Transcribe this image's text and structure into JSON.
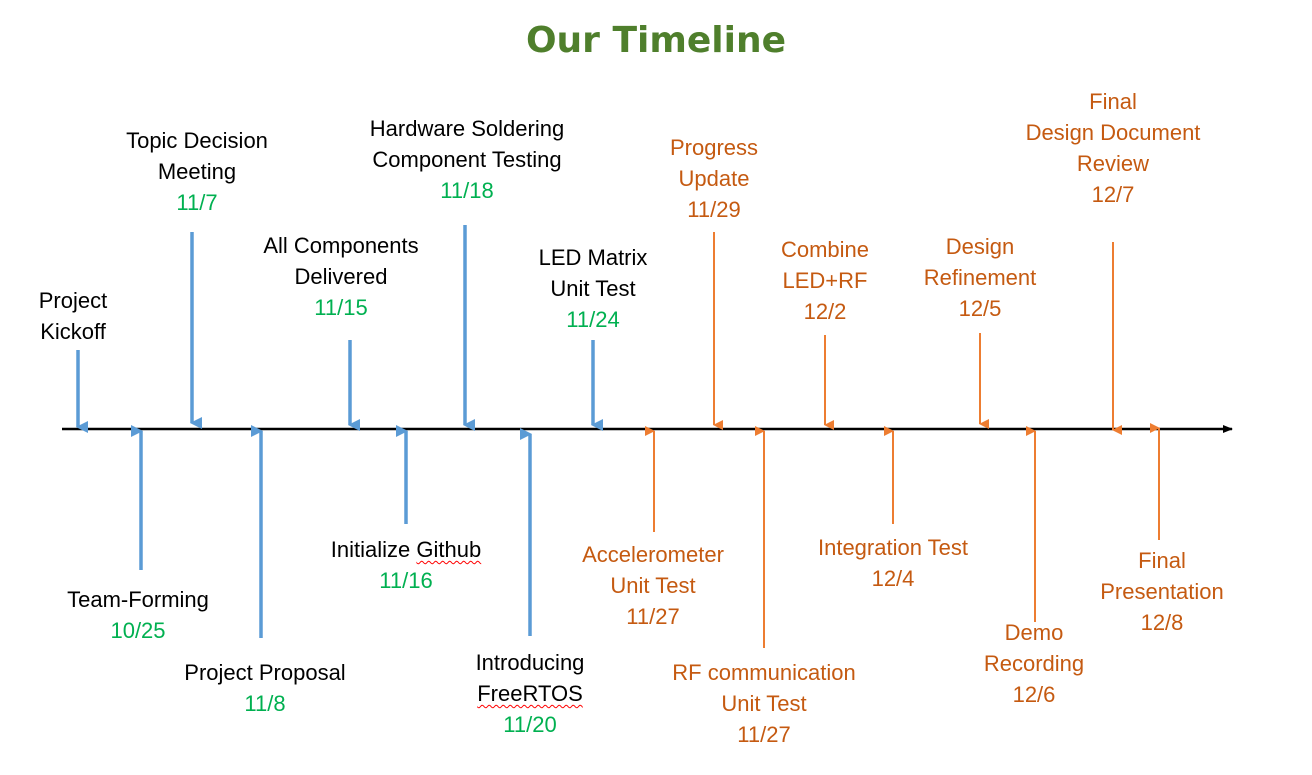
{
  "title": "Our Timeline",
  "colors": {
    "title": "#4f7f2c",
    "past": "#5b9bd5",
    "future": "#ed7d31",
    "past_date": "#00b050",
    "future_text": "#c55a11",
    "axis": "#000000"
  },
  "events": [
    {
      "lines": [
        "Project",
        "Kickoff"
      ],
      "date": "",
      "phase": "past",
      "side": "top"
    },
    {
      "lines": [
        "Team-Forming"
      ],
      "date": "10/25",
      "phase": "past",
      "side": "bottom"
    },
    {
      "lines": [
        "Topic Decision",
        "Meeting"
      ],
      "date": "11/7",
      "phase": "past",
      "side": "top"
    },
    {
      "lines": [
        "Project Proposal"
      ],
      "date": "11/8",
      "phase": "past",
      "side": "bottom"
    },
    {
      "lines": [
        "All Components",
        "Delivered"
      ],
      "date": "11/15",
      "phase": "past",
      "side": "top"
    },
    {
      "lines": [
        "Initialize Github"
      ],
      "date": "11/16",
      "phase": "past",
      "side": "bottom"
    },
    {
      "lines": [
        "Hardware Soldering",
        "Component Testing"
      ],
      "date": "11/18",
      "phase": "past",
      "side": "top"
    },
    {
      "lines": [
        "Introducing",
        "FreeRTOS"
      ],
      "date": "11/20",
      "phase": "past",
      "side": "bottom"
    },
    {
      "lines": [
        "LED Matrix",
        "Unit Test"
      ],
      "date": "11/24",
      "phase": "past",
      "side": "top"
    },
    {
      "lines": [
        "Accelerometer",
        "Unit Test"
      ],
      "date": "11/27",
      "phase": "future",
      "side": "bottom"
    },
    {
      "lines": [
        "Progress",
        "Update"
      ],
      "date": "11/29",
      "phase": "future",
      "side": "top"
    },
    {
      "lines": [
        "RF communication",
        "Unit Test"
      ],
      "date": "11/27",
      "phase": "future",
      "side": "bottom"
    },
    {
      "lines": [
        "Combine",
        "LED+RF"
      ],
      "date": "12/2",
      "phase": "future",
      "side": "top"
    },
    {
      "lines": [
        "Integration Test"
      ],
      "date": "12/4",
      "phase": "future",
      "side": "bottom"
    },
    {
      "lines": [
        "Design",
        "Refinement"
      ],
      "date": "12/5",
      "phase": "future",
      "side": "top"
    },
    {
      "lines": [
        "Demo",
        "Recording"
      ],
      "date": "12/6",
      "phase": "future",
      "side": "bottom"
    },
    {
      "lines": [
        "Final",
        "Design Document",
        "Review"
      ],
      "date": "12/7",
      "phase": "future",
      "side": "top"
    },
    {
      "lines": [
        "Final",
        "Presentation"
      ],
      "date": "12/8",
      "phase": "future",
      "side": "bottom"
    }
  ]
}
